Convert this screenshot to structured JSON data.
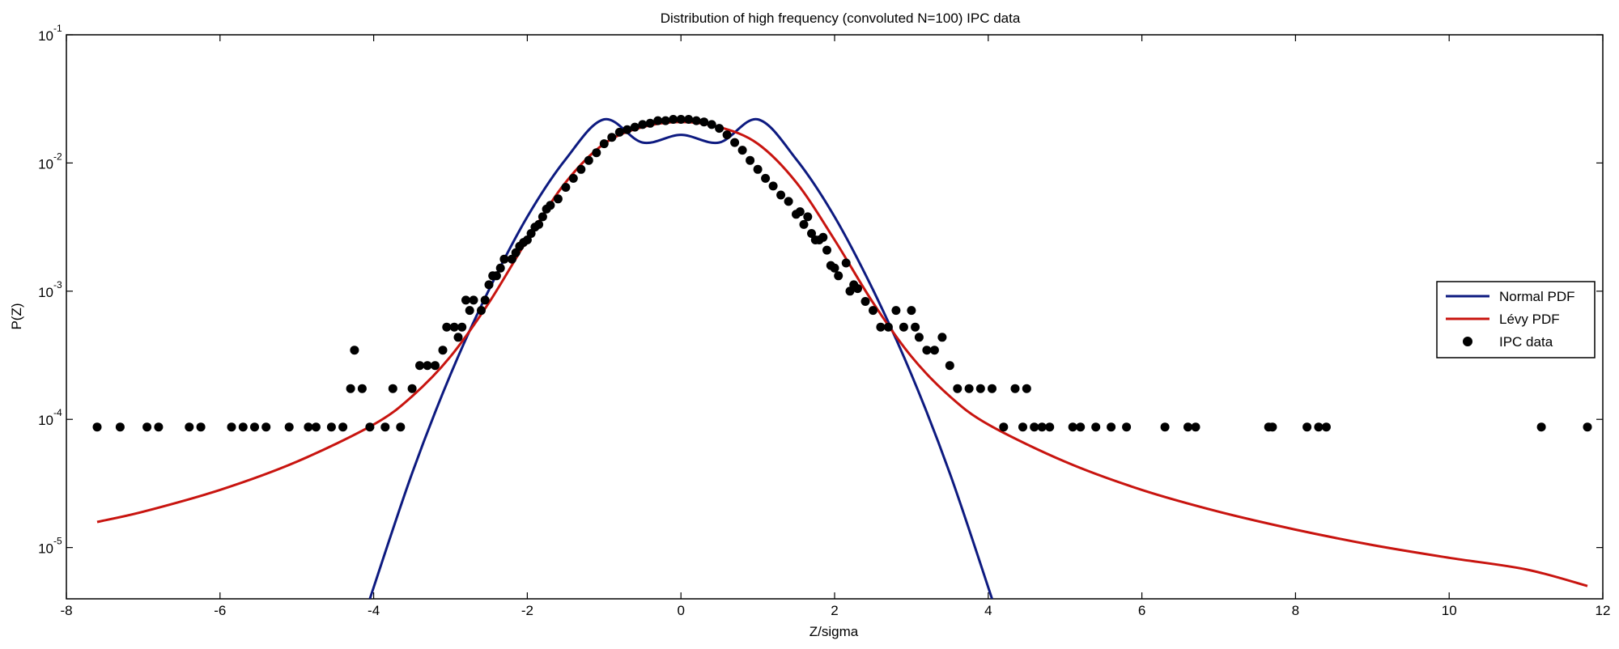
{
  "chart_data": {
    "type": "line",
    "title": "Distribution of high frequency (convoluted N=100) IPC data",
    "xlabel": "Z/sigma",
    "ylabel": "P(Z)",
    "xlim": [
      -8,
      12
    ],
    "ylim_log10": [
      -5.4,
      -1
    ],
    "y_scale": "log",
    "x_ticks": [
      -8,
      -6,
      -4,
      -2,
      0,
      2,
      4,
      6,
      8,
      10,
      12
    ],
    "y_ticks": [
      {
        "base": "10",
        "exp": "-1"
      },
      {
        "base": "10",
        "exp": "-2"
      },
      {
        "base": "10",
        "exp": "-3"
      },
      {
        "base": "10",
        "exp": "-4"
      },
      {
        "base": "10",
        "exp": "-5"
      }
    ],
    "y_tick_exponents": [
      -1,
      -2,
      -3,
      -4,
      -5
    ],
    "legend_position": "right",
    "legend": [
      {
        "label": "Normal PDF",
        "color": "#0d1a80",
        "kind": "line"
      },
      {
        "label": "Lévy PDF",
        "color": "#c8140f",
        "kind": "line"
      },
      {
        "label": "IPC data",
        "color": "#000000",
        "kind": "marker"
      }
    ],
    "series": [
      {
        "name": "Normal PDF",
        "color": "#0d1a80",
        "x": [
          -4.05,
          -3.5,
          -3.0,
          -2.5,
          -2.0,
          -1.5,
          -1.0,
          -0.5,
          0.0,
          0.5,
          1.0,
          1.5,
          2.0,
          2.5,
          3.0,
          3.5,
          4.05
        ],
        "log10_y": [
          -5.4,
          -4.42,
          -3.65,
          -2.99,
          -2.42,
          -1.97,
          -1.66,
          -1.84,
          -1.78,
          -1.84,
          -1.66,
          -1.97,
          -2.42,
          -2.99,
          -3.65,
          -4.42,
          -5.4
        ]
      },
      {
        "name": "Lévy PDF",
        "color": "#c8140f",
        "x": [
          -7.6,
          -7.0,
          -6.0,
          -5.0,
          -4.0,
          -3.5,
          -3.0,
          -2.5,
          -2.0,
          -1.5,
          -1.0,
          -0.5,
          0.0,
          0.5,
          1.0,
          1.5,
          2.0,
          2.5,
          3.0,
          3.5,
          4.0,
          5.0,
          6.0,
          7.0,
          8.0,
          9.0,
          10.0,
          11.0,
          11.8
        ],
        "log10_y": [
          -4.8,
          -4.72,
          -4.55,
          -4.33,
          -4.04,
          -3.82,
          -3.51,
          -3.09,
          -2.6,
          -2.15,
          -1.85,
          -1.72,
          -1.68,
          -1.72,
          -1.85,
          -2.15,
          -2.6,
          -3.09,
          -3.51,
          -3.82,
          -4.04,
          -4.33,
          -4.55,
          -4.72,
          -4.86,
          -4.98,
          -5.08,
          -5.17,
          -5.3
        ]
      },
      {
        "name": "IPC data",
        "color": "#000000",
        "x": [
          -7.6,
          -7.3,
          -6.95,
          -6.8,
          -6.4,
          -6.25,
          -5.85,
          -5.7,
          -5.55,
          -5.4,
          -5.1,
          -4.85,
          -4.75,
          -4.55,
          -4.4,
          -4.3,
          -4.25,
          -4.15,
          -4.05,
          -3.85,
          -3.75,
          -3.65,
          -3.5,
          -3.4,
          -3.3,
          -3.2,
          -3.1,
          -3.05,
          -2.95,
          -2.9,
          -2.85,
          -2.8,
          -2.75,
          -2.7,
          -2.6,
          -2.55,
          -2.5,
          -2.45,
          -2.4,
          -2.35,
          -2.3,
          -2.2,
          -2.15,
          -2.1,
          -2.05,
          -2.0,
          -1.95,
          -1.9,
          -1.85,
          -1.8,
          -1.75,
          -1.7,
          -1.6,
          -1.5,
          -1.4,
          -1.3,
          -1.2,
          -1.1,
          -1.0,
          -0.9,
          -0.8,
          -0.7,
          -0.6,
          -0.5,
          -0.4,
          -0.3,
          -0.2,
          -0.1,
          0.0,
          0.1,
          0.2,
          0.3,
          0.4,
          0.5,
          0.6,
          0.7,
          0.8,
          0.9,
          1.0,
          1.1,
          1.2,
          1.3,
          1.4,
          1.5,
          1.55,
          1.6,
          1.65,
          1.7,
          1.75,
          1.8,
          1.85,
          1.9,
          1.95,
          2.0,
          2.05,
          2.15,
          2.2,
          2.25,
          2.3,
          2.4,
          2.5,
          2.6,
          2.7,
          2.8,
          2.9,
          3.0,
          3.05,
          3.1,
          3.2,
          3.3,
          3.4,
          3.5,
          3.6,
          3.75,
          3.9,
          4.05,
          4.2,
          4.35,
          4.45,
          4.5,
          4.6,
          4.7,
          4.8,
          5.1,
          5.2,
          5.4,
          5.6,
          5.8,
          6.3,
          6.6,
          6.7,
          7.65,
          7.7,
          8.15,
          8.3,
          8.4,
          11.2,
          11.8
        ],
        "log10_y": [
          -4.06,
          -4.06,
          -4.06,
          -4.06,
          -4.06,
          -4.06,
          -4.06,
          -4.06,
          -4.06,
          -4.06,
          -4.06,
          -4.06,
          -4.06,
          -4.06,
          -4.06,
          -3.76,
          -3.46,
          -3.76,
          -4.06,
          -4.06,
          -3.76,
          -4.06,
          -3.76,
          -3.58,
          -3.58,
          -3.58,
          -3.46,
          -3.28,
          -3.28,
          -3.36,
          -3.28,
          -3.07,
          -3.15,
          -3.07,
          -3.15,
          -3.07,
          -2.95,
          -2.88,
          -2.88,
          -2.82,
          -2.75,
          -2.75,
          -2.7,
          -2.65,
          -2.62,
          -2.6,
          -2.55,
          -2.5,
          -2.48,
          -2.42,
          -2.36,
          -2.33,
          -2.28,
          -2.19,
          -2.12,
          -2.05,
          -1.98,
          -1.92,
          -1.85,
          -1.8,
          -1.76,
          -1.74,
          -1.72,
          -1.7,
          -1.69,
          -1.67,
          -1.67,
          -1.66,
          -1.66,
          -1.66,
          -1.67,
          -1.68,
          -1.7,
          -1.73,
          -1.78,
          -1.84,
          -1.9,
          -1.98,
          -2.05,
          -2.12,
          -2.18,
          -2.25,
          -2.3,
          -2.4,
          -2.38,
          -2.48,
          -2.42,
          -2.55,
          -2.6,
          -2.6,
          -2.58,
          -2.68,
          -2.8,
          -2.82,
          -2.88,
          -2.78,
          -3.0,
          -2.95,
          -2.98,
          -3.08,
          -3.15,
          -3.28,
          -3.28,
          -3.15,
          -3.28,
          -3.15,
          -3.28,
          -3.36,
          -3.46,
          -3.46,
          -3.36,
          -3.58,
          -3.76,
          -3.76,
          -3.76,
          -3.76,
          -4.06,
          -3.76,
          -4.06,
          -3.76,
          -4.06,
          -4.06,
          -4.06,
          -4.06,
          -4.06,
          -4.06,
          -4.06,
          -4.06,
          -4.06,
          -4.06,
          -4.06,
          -4.06,
          -4.06,
          -4.06,
          -4.06,
          -4.06,
          -4.06,
          -4.06
        ]
      }
    ]
  }
}
